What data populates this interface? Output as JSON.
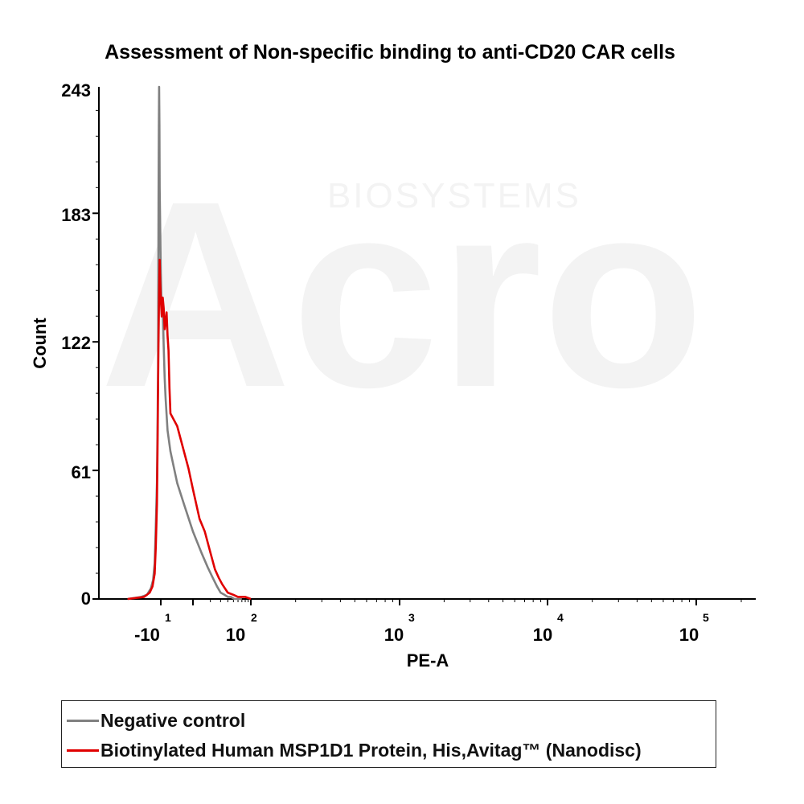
{
  "chart_data": {
    "type": "line",
    "title": "Assessment of Non-specific binding to anti-CD20 CAR cells",
    "xlabel": "PE-A",
    "ylabel": "Count",
    "ylim": [
      0,
      243
    ],
    "y_ticks": [
      "0",
      "61",
      "122",
      "183",
      "243"
    ],
    "x_scale": "biexponential",
    "x_ticks": [
      {
        "base": "-10",
        "exp": "1"
      },
      {
        "base": "10",
        "exp": "2"
      },
      {
        "base": "10",
        "exp": "3"
      },
      {
        "base": "10",
        "exp": "4"
      },
      {
        "base": "10",
        "exp": "5"
      }
    ],
    "x_tick_values": [
      -10,
      100,
      1000,
      10000,
      100000
    ],
    "grid": false,
    "legend_position": "bottom",
    "series": [
      {
        "name": "Negative control",
        "color": "#808080",
        "x": [
          -70,
          -45,
          -35,
          -28,
          -24,
          -21,
          -19,
          -17,
          -16,
          -15,
          -14.5,
          -14,
          -13.5,
          -13,
          -12.5,
          -12,
          -11,
          -10,
          -9,
          -8,
          -7,
          -6,
          -5,
          -3,
          0,
          3,
          6,
          10,
          14,
          18,
          22,
          26,
          30,
          35,
          40,
          45,
          52,
          60,
          70
        ],
        "y": [
          0,
          1,
          2,
          5,
          9,
          17,
          35,
          55,
          80,
          110,
          150,
          190,
          225,
          243,
          225,
          195,
          175,
          155,
          135,
          138,
          120,
          105,
          95,
          80,
          70,
          55,
          45,
          32,
          22,
          15,
          10,
          6,
          3,
          2,
          1,
          1,
          0,
          0,
          0
        ]
      },
      {
        "name": "Biotinylated Human MSP1D1 Protein, His,Avitag™ (Nanodisc)",
        "color": "#e00000",
        "x": [
          -70,
          -40,
          -30,
          -25,
          -21,
          -19,
          -17,
          -16,
          -15,
          -14,
          -13,
          -12,
          -11,
          -10,
          -9,
          -8,
          -7,
          -6,
          -5,
          -4,
          -3,
          -2,
          -1,
          0,
          3,
          6,
          8,
          10,
          13,
          16,
          20,
          24,
          28,
          32,
          40,
          50,
          60,
          80,
          100
        ],
        "y": [
          0,
          1,
          3,
          6,
          12,
          25,
          45,
          70,
          100,
          125,
          145,
          161,
          150,
          142,
          134,
          143,
          138,
          128,
          132,
          136,
          125,
          118,
          100,
          88,
          82,
          70,
          62,
          52,
          38,
          32,
          22,
          14,
          10,
          7,
          3,
          2,
          1,
          1,
          0
        ]
      }
    ]
  },
  "legend": {
    "items": [
      {
        "label": "Negative control",
        "color": "#808080"
      },
      {
        "label": "Biotinylated Human MSP1D1 Protein, His,Avitag™ (Nanodisc)",
        "color": "#e00000"
      }
    ]
  },
  "watermark": {
    "brand": "Acro",
    "sub": "BIOSYSTEMS"
  }
}
